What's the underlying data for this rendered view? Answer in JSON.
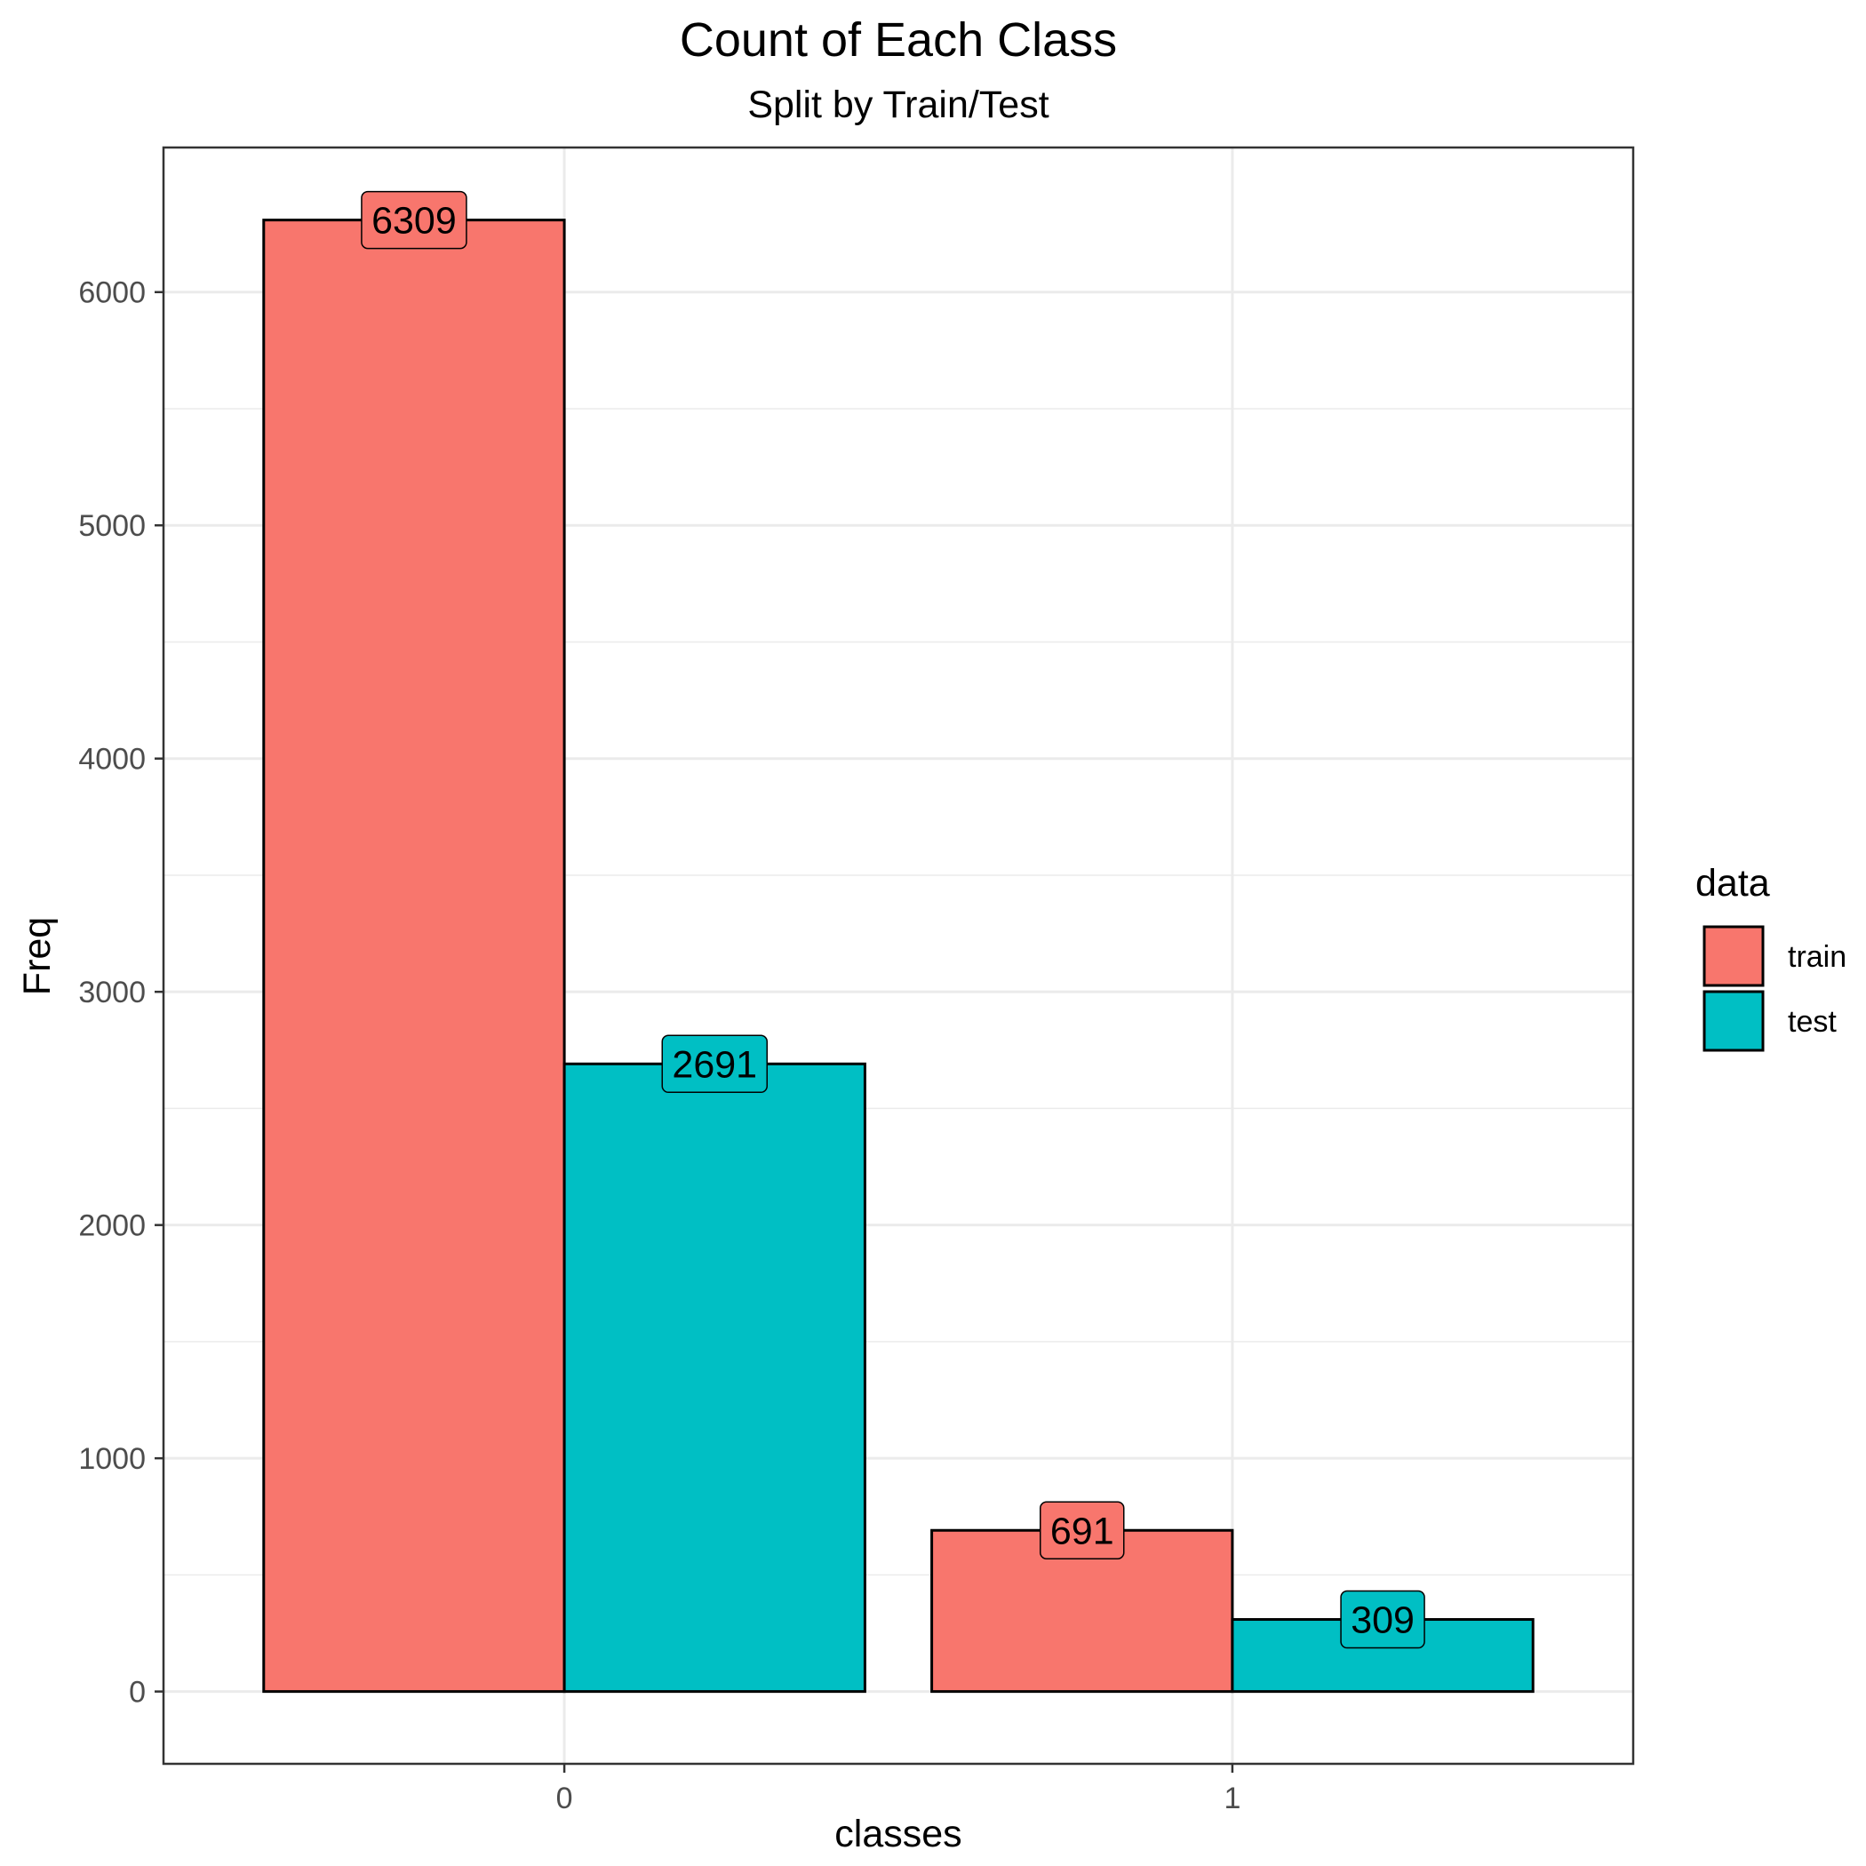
{
  "chart_data": {
    "type": "bar",
    "title": "Count of Each Class",
    "subtitle": "Split by Train/Test",
    "xlabel": "classes",
    "ylabel": "Freq",
    "categories": [
      "0",
      "1"
    ],
    "series": [
      {
        "name": "train",
        "values": [
          6309,
          691
        ],
        "color": "#F8766D"
      },
      {
        "name": "test",
        "values": [
          2691,
          309
        ],
        "color": "#00BFC4"
      }
    ],
    "ylim": [
      -310,
      6620
    ],
    "yticks": [
      0,
      1000,
      2000,
      3000,
      4000,
      5000,
      6000
    ],
    "grid": true,
    "legend": {
      "title": "data",
      "placement": "right"
    },
    "colors": {
      "gridline": "#EBEBEB",
      "panel_border": "#333333",
      "bar_outline": "#000000"
    }
  }
}
